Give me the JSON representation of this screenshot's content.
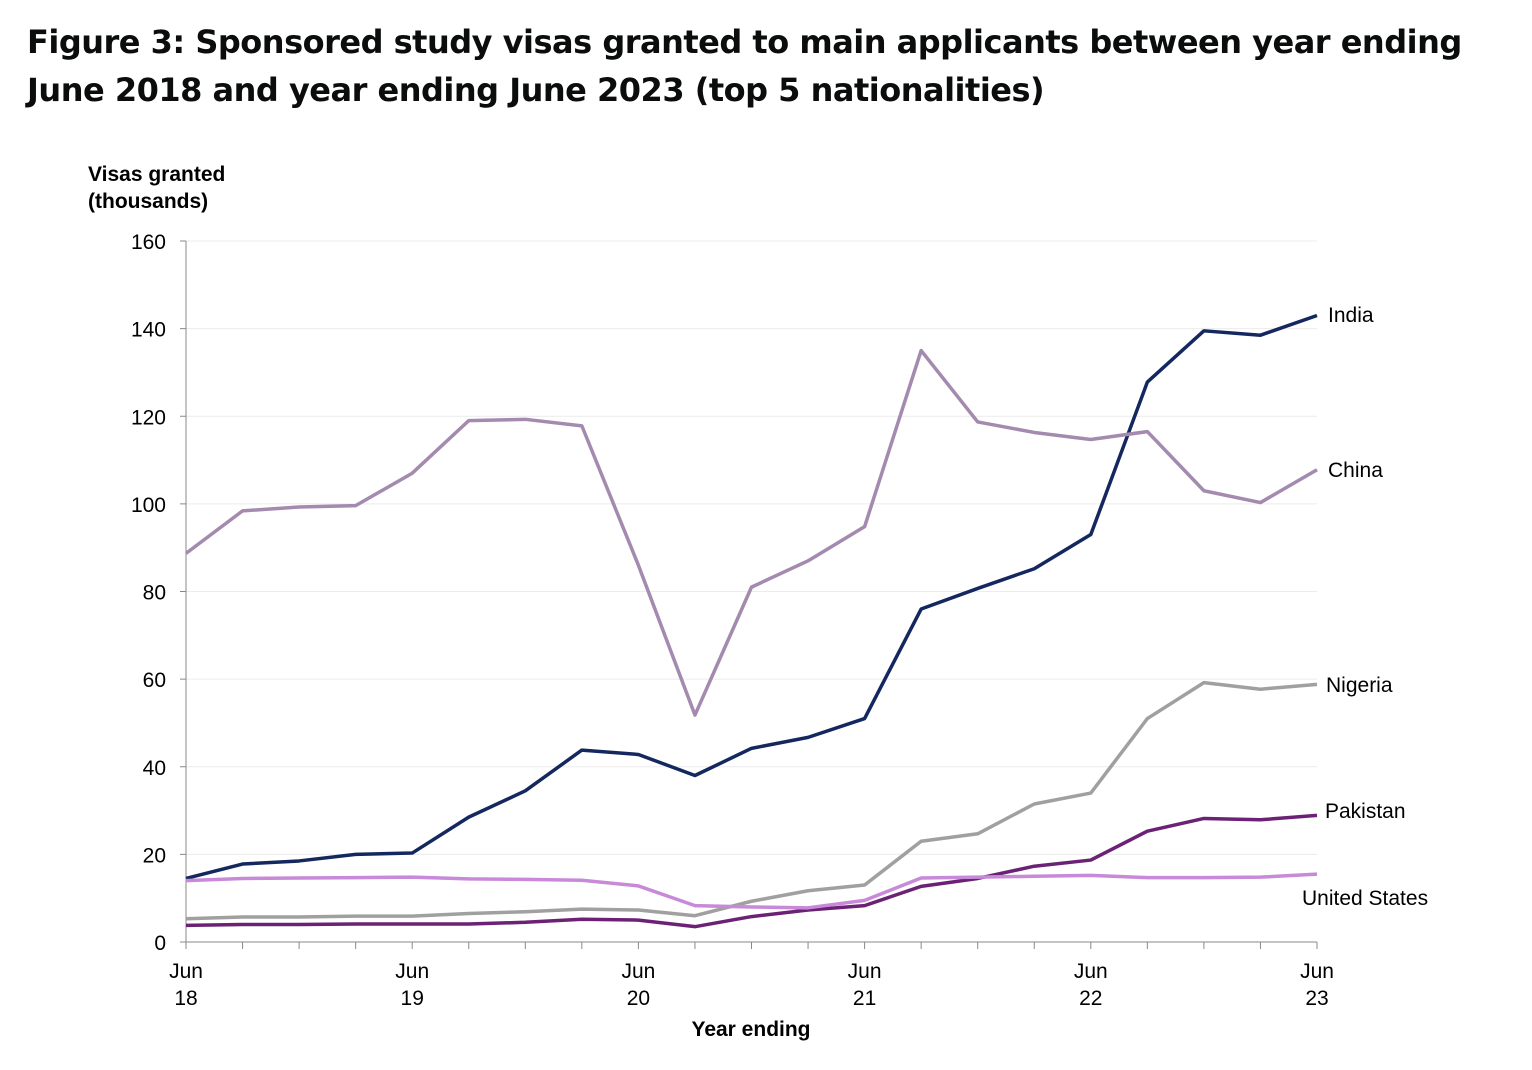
{
  "chart_data": {
    "type": "line",
    "title": "Figure 3: Sponsored study visas granted to main applicants between year ending June 2018 and year ending June 2023 (top 5 nationalities)",
    "ylabel": [
      "Visas granted",
      "(thousands)"
    ],
    "xlabel": "Year ending",
    "ylim": [
      0,
      160
    ],
    "yticks": [
      0,
      20,
      40,
      60,
      80,
      100,
      120,
      140,
      160
    ],
    "xtick_labels": [
      [
        "Jun",
        "18"
      ],
      [
        "Jun",
        "19"
      ],
      [
        "Jun",
        "20"
      ],
      [
        "Jun",
        "21"
      ],
      [
        "Jun",
        "22"
      ],
      [
        "Jun",
        "23"
      ]
    ],
    "x": [
      "Jun 18",
      "Sep 18",
      "Dec 18",
      "Mar 19",
      "Jun 19",
      "Sep 19",
      "Dec 19",
      "Mar 20",
      "Jun 20",
      "Sep 20",
      "Dec 20",
      "Mar 21",
      "Jun 21",
      "Sep 21",
      "Dec 21",
      "Mar 22",
      "Jun 22",
      "Sep 22",
      "Dec 22",
      "Mar 23",
      "Jun 23"
    ],
    "grid": true,
    "legend": "direct labels at line ends",
    "series": [
      {
        "name": "India",
        "color": "#14285f",
        "values": [
          14.5,
          17.8,
          18.5,
          20,
          20.3,
          28.5,
          34.5,
          43.8,
          42.8,
          38,
          44.2,
          46.7,
          51,
          76,
          80.7,
          85.2,
          93,
          127.8,
          139.5,
          138.5,
          143
        ]
      },
      {
        "name": "China",
        "color": "#a38aae",
        "values": [
          88.7,
          98.4,
          99.3,
          99.6,
          107,
          119,
          119.3,
          117.8,
          86,
          51.8,
          81,
          87,
          94.8,
          135,
          118.7,
          116.3,
          114.7,
          116.5,
          103,
          100.3,
          107.8
        ]
      },
      {
        "name": "Nigeria",
        "color": "#a0a0a0",
        "values": [
          5.3,
          5.7,
          5.7,
          5.9,
          5.9,
          6.5,
          6.9,
          7.5,
          7.3,
          6,
          9.3,
          11.7,
          13,
          23,
          24.7,
          31.5,
          34,
          51,
          59.2,
          57.7,
          58.8
        ]
      },
      {
        "name": "Pakistan",
        "color": "#6b2274",
        "values": [
          3.8,
          4,
          4,
          4.1,
          4.1,
          4.1,
          4.5,
          5.2,
          5,
          3.5,
          5.8,
          7.3,
          8.3,
          12.7,
          14.5,
          17.3,
          18.7,
          25.3,
          28.2,
          27.9,
          28.9
        ]
      },
      {
        "name": "United States",
        "color": "#c88ad8",
        "values": [
          14,
          14.5,
          14.6,
          14.7,
          14.8,
          14.4,
          14.3,
          14.1,
          12.8,
          8.3,
          8,
          7.8,
          9.5,
          14.6,
          14.8,
          15,
          15.2,
          14.7,
          14.7,
          14.8,
          15.5
        ]
      }
    ]
  }
}
